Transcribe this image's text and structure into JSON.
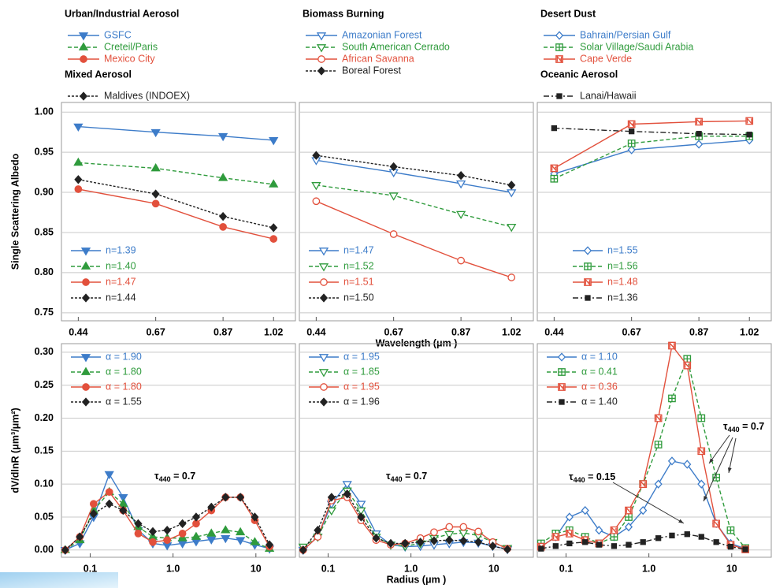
{
  "chart_data": [
    {
      "type": "line",
      "x": [
        0.44,
        0.67,
        0.87,
        1.02
      ],
      "xlim": [
        0.39,
        1.085
      ],
      "xticks": [
        0.44,
        0.67,
        0.87,
        1.02
      ],
      "ylim": [
        0.74,
        1.012
      ],
      "yticks": [
        {
          "value": 0.75,
          "label": "0.75"
        },
        {
          "value": 0.8,
          "label": "0.80"
        },
        {
          "value": 0.85,
          "label": "0.85"
        },
        {
          "value": 0.9,
          "label": "0.90"
        },
        {
          "value": 0.95,
          "label": "0.95"
        },
        {
          "value": 1.0,
          "label": "1.00"
        }
      ],
      "ytick_labels": true,
      "grid": true,
      "ylabel": "Single Scattering Albedo",
      "legend_groups": [
        {
          "title": "Urban/Industrial Aerosol",
          "series": [
            {
              "name": "GSFC",
              "color": "#3d7cc9",
              "marker": "tri-down",
              "filled": true,
              "dash": "solid",
              "label": "n=1.39",
              "values": [
                0.982,
                0.975,
                0.97,
                0.965
              ]
            },
            {
              "name": "Creteil/Paris",
              "color": "#2f9b3c",
              "marker": "tri-up",
              "filled": true,
              "dash": "dashed",
              "label": "n=1.40",
              "values": [
                0.937,
                0.93,
                0.918,
                0.91
              ]
            },
            {
              "name": "Mexico City",
              "color": "#e2503c",
              "marker": "circle",
              "filled": true,
              "dash": "solid",
              "label": "n=1.47",
              "values": [
                0.904,
                0.886,
                0.857,
                0.842
              ]
            }
          ]
        },
        {
          "title": "Mixed Aerosol",
          "series": [
            {
              "name": "Maldives (INDOEX)",
              "color": "#222222",
              "marker": "diamond",
              "filled": true,
              "dash": "dotted",
              "label": "n=1.44",
              "values": [
                0.916,
                0.898,
                0.87,
                0.856
              ]
            }
          ]
        }
      ]
    },
    {
      "type": "line",
      "x": [
        0.44,
        0.67,
        0.87,
        1.02
      ],
      "xlim": [
        0.39,
        1.085
      ],
      "xticks": [
        0.44,
        0.67,
        0.87,
        1.02
      ],
      "ylim": [
        0.74,
        1.012
      ],
      "yticks": [
        0.75,
        0.8,
        0.85,
        0.9,
        0.95,
        1.0
      ],
      "ytick_labels": false,
      "grid": true,
      "xlabel": "Wavelength (μm )",
      "legend_groups": [
        {
          "title": "Biomass Burning",
          "series": [
            {
              "name": "Amazonian Forest",
              "color": "#3d7cc9",
              "marker": "tri-down",
              "filled": false,
              "dash": "solid",
              "label": "n=1.47",
              "values": [
                0.94,
                0.925,
                0.911,
                0.9
              ]
            },
            {
              "name": "South American Cerrado",
              "color": "#2f9b3c",
              "marker": "tri-down",
              "filled": false,
              "dash": "dashed",
              "label": "n=1.52",
              "values": [
                0.909,
                0.896,
                0.873,
                0.857
              ]
            },
            {
              "name": "African Savanna",
              "color": "#e2503c",
              "marker": "circle",
              "filled": false,
              "dash": "solid",
              "label": "n=1.51",
              "values": [
                0.889,
                0.848,
                0.815,
                0.794
              ]
            },
            {
              "name": "Boreal Forest",
              "color": "#222222",
              "marker": "diamond",
              "filled": true,
              "dash": "dotted",
              "label": "n=1.50",
              "values": [
                0.946,
                0.932,
                0.921,
                0.909
              ]
            }
          ]
        }
      ]
    },
    {
      "type": "line",
      "x": [
        0.44,
        0.67,
        0.87,
        1.02
      ],
      "xlim": [
        0.39,
        1.085
      ],
      "xticks": [
        0.44,
        0.67,
        0.87,
        1.02
      ],
      "ylim": [
        0.74,
        1.012
      ],
      "yticks": [
        0.75,
        0.8,
        0.85,
        0.9,
        0.95,
        1.0
      ],
      "ytick_labels": false,
      "grid": true,
      "legend_groups": [
        {
          "title": "Desert Dust",
          "series": [
            {
              "name": "Bahrain/Persian Gulf",
              "color": "#3d7cc9",
              "marker": "diamond",
              "filled": false,
              "dash": "solid",
              "label": "n=1.55",
              "values": [
                0.923,
                0.953,
                0.96,
                0.965
              ]
            },
            {
              "name": "Solar Village/Saudi Arabia",
              "color": "#2f9b3c",
              "marker": "square-plus",
              "filled": false,
              "dash": "dashed",
              "label": "n=1.56",
              "values": [
                0.917,
                0.961,
                0.97,
                0.97
              ]
            },
            {
              "name": "Cape Verde",
              "color": "#e2503c",
              "marker": "square-n",
              "filled": false,
              "dash": "solid",
              "label": "n=1.48",
              "values": [
                0.93,
                0.985,
                0.988,
                0.989
              ]
            }
          ]
        },
        {
          "title": "Oceanic Aerosol",
          "series": [
            {
              "name": "Lanai/Hawaii",
              "color": "#222222",
              "marker": "square",
              "filled": true,
              "dash": "dashdot",
              "label": "n=1.36",
              "values": [
                0.98,
                0.976,
                0.973,
                0.972
              ]
            }
          ]
        }
      ]
    },
    {
      "type": "line",
      "xscale": "log",
      "x": [
        0.05,
        0.075,
        0.11,
        0.17,
        0.25,
        0.38,
        0.57,
        0.85,
        1.3,
        1.9,
        2.9,
        4.3,
        6.5,
        9.7,
        14.6
      ],
      "xlim": [
        0.045,
        30
      ],
      "xticks": [
        0.1,
        {
          "value": 1,
          "label": "1.0"
        },
        10
      ],
      "ylim": [
        -0.011,
        0.313
      ],
      "yticks": [
        {
          "value": 0,
          "label": "0.00"
        },
        {
          "value": 0.05,
          "label": "0.05"
        },
        {
          "value": 0.1,
          "label": "0.10"
        },
        {
          "value": 0.15,
          "label": "0.15"
        },
        {
          "value": 0.2,
          "label": "0.20"
        },
        {
          "value": 0.25,
          "label": "0.25"
        },
        {
          "value": 0.3,
          "label": "0.30"
        }
      ],
      "ytick_labels": true,
      "grid": true,
      "ylabel": "dV/dlnR (μm³/μm²)",
      "annotations": [
        {
          "symbol": "τ",
          "subscript": "440",
          "text": " = 0.7"
        }
      ],
      "series": [
        {
          "color": "#3d7cc9",
          "marker": "tri-down",
          "filled": true,
          "dash": "solid",
          "label": "α = 1.90",
          "values": [
            0.0,
            0.01,
            0.05,
            0.115,
            0.08,
            0.03,
            0.01,
            0.007,
            0.01,
            0.013,
            0.016,
            0.018,
            0.015,
            0.008,
            0.002
          ]
        },
        {
          "color": "#2f9b3c",
          "marker": "tri-up",
          "filled": true,
          "dash": "dashed",
          "label": "α = 1.80",
          "values": [
            0.0,
            0.015,
            0.06,
            0.088,
            0.07,
            0.035,
            0.02,
            0.018,
            0.018,
            0.02,
            0.025,
            0.03,
            0.027,
            0.012,
            0.002
          ]
        },
        {
          "color": "#e2503c",
          "marker": "circle",
          "filled": true,
          "dash": "solid",
          "label": "α = 1.80",
          "values": [
            0.0,
            0.02,
            0.07,
            0.088,
            0.06,
            0.025,
            0.012,
            0.015,
            0.025,
            0.04,
            0.06,
            0.08,
            0.08,
            0.045,
            0.005
          ]
        },
        {
          "color": "#222222",
          "marker": "diamond",
          "filled": true,
          "dash": "dotted",
          "label": "α = 1.55",
          "values": [
            0.0,
            0.02,
            0.055,
            0.07,
            0.06,
            0.04,
            0.028,
            0.03,
            0.04,
            0.05,
            0.065,
            0.08,
            0.08,
            0.05,
            0.008
          ]
        }
      ]
    },
    {
      "type": "line",
      "xscale": "log",
      "x": [
        0.05,
        0.075,
        0.11,
        0.17,
        0.25,
        0.38,
        0.57,
        0.85,
        1.3,
        1.9,
        2.9,
        4.3,
        6.5,
        9.7,
        14.6
      ],
      "xlim": [
        0.045,
        30
      ],
      "xticks": [
        0.1,
        {
          "value": 1,
          "label": "1.0"
        },
        10
      ],
      "ylim": [
        -0.011,
        0.313
      ],
      "yticks": [
        0,
        0.05,
        0.1,
        0.15,
        0.2,
        0.25,
        0.3
      ],
      "ytick_labels": false,
      "grid": true,
      "xlabel": "Radius (μm )",
      "annotations": [
        {
          "symbol": "τ",
          "subscript": "440",
          "text": " = 0.7"
        }
      ],
      "series": [
        {
          "color": "#3d7cc9",
          "marker": "tri-down",
          "filled": false,
          "dash": "solid",
          "label": "α = 1.95",
          "values": [
            0.0,
            0.02,
            0.07,
            0.1,
            0.07,
            0.025,
            0.008,
            0.005,
            0.006,
            0.008,
            0.01,
            0.012,
            0.011,
            0.006,
            0.001
          ]
        },
        {
          "color": "#2f9b3c",
          "marker": "tri-down",
          "filled": false,
          "dash": "dashed",
          "label": "α = 1.85",
          "values": [
            0.005,
            0.02,
            0.06,
            0.09,
            0.06,
            0.02,
            0.008,
            0.006,
            0.01,
            0.018,
            0.024,
            0.026,
            0.022,
            0.012,
            0.003
          ]
        },
        {
          "color": "#e2503c",
          "marker": "circle",
          "filled": false,
          "dash": "solid",
          "label": "α = 1.95",
          "values": [
            0.0,
            0.02,
            0.075,
            0.08,
            0.045,
            0.015,
            0.008,
            0.01,
            0.018,
            0.027,
            0.035,
            0.035,
            0.028,
            0.012,
            0.002
          ]
        },
        {
          "color": "#222222",
          "marker": "diamond",
          "filled": true,
          "dash": "dotted",
          "label": "α = 1.96",
          "values": [
            0.0,
            0.03,
            0.08,
            0.085,
            0.05,
            0.018,
            0.01,
            0.01,
            0.012,
            0.014,
            0.015,
            0.014,
            0.012,
            0.006,
            0.001
          ]
        }
      ]
    },
    {
      "type": "line",
      "xscale": "log",
      "x": [
        0.05,
        0.075,
        0.11,
        0.17,
        0.25,
        0.38,
        0.57,
        0.85,
        1.3,
        1.9,
        2.9,
        4.3,
        6.5,
        9.7,
        14.6
      ],
      "xlim": [
        0.045,
        30
      ],
      "xticks": [
        0.1,
        {
          "value": 1,
          "label": "1.0"
        },
        10
      ],
      "ylim": [
        -0.011,
        0.313
      ],
      "yticks": [
        0,
        0.05,
        0.1,
        0.15,
        0.2,
        0.25,
        0.3
      ],
      "ytick_labels": false,
      "grid": true,
      "annotations": [
        {
          "symbol": "τ",
          "subscript": "440",
          "text": " = 0.15"
        },
        {
          "symbol": "τ",
          "subscript": "440",
          "text": " = 0.7"
        }
      ],
      "series": [
        {
          "color": "#3d7cc9",
          "marker": "diamond",
          "filled": false,
          "dash": "solid",
          "label": "α = 1.10",
          "values": [
            0.005,
            0.02,
            0.05,
            0.06,
            0.03,
            0.02,
            0.035,
            0.06,
            0.1,
            0.135,
            0.13,
            0.1,
            0.04,
            0.01,
            0.002
          ]
        },
        {
          "color": "#2f9b3c",
          "marker": "square-plus",
          "filled": false,
          "dash": "dashed",
          "label": "α = 0.41",
          "values": [
            0.01,
            0.025,
            0.03,
            0.02,
            0.01,
            0.02,
            0.05,
            0.1,
            0.16,
            0.23,
            0.29,
            0.2,
            0.11,
            0.03,
            0.003
          ]
        },
        {
          "color": "#e2503c",
          "marker": "square-n",
          "filled": false,
          "dash": "solid",
          "label": "α = 0.36",
          "values": [
            0.005,
            0.02,
            0.025,
            0.015,
            0.01,
            0.03,
            0.06,
            0.1,
            0.2,
            0.31,
            0.28,
            0.15,
            0.04,
            0.008,
            0.001
          ]
        },
        {
          "color": "#222222",
          "marker": "square",
          "filled": true,
          "dash": "dashdot",
          "label": "α = 1.40",
          "values": [
            0.002,
            0.006,
            0.01,
            0.012,
            0.008,
            0.006,
            0.008,
            0.012,
            0.018,
            0.022,
            0.024,
            0.02,
            0.012,
            0.005,
            0.001
          ]
        }
      ]
    }
  ]
}
